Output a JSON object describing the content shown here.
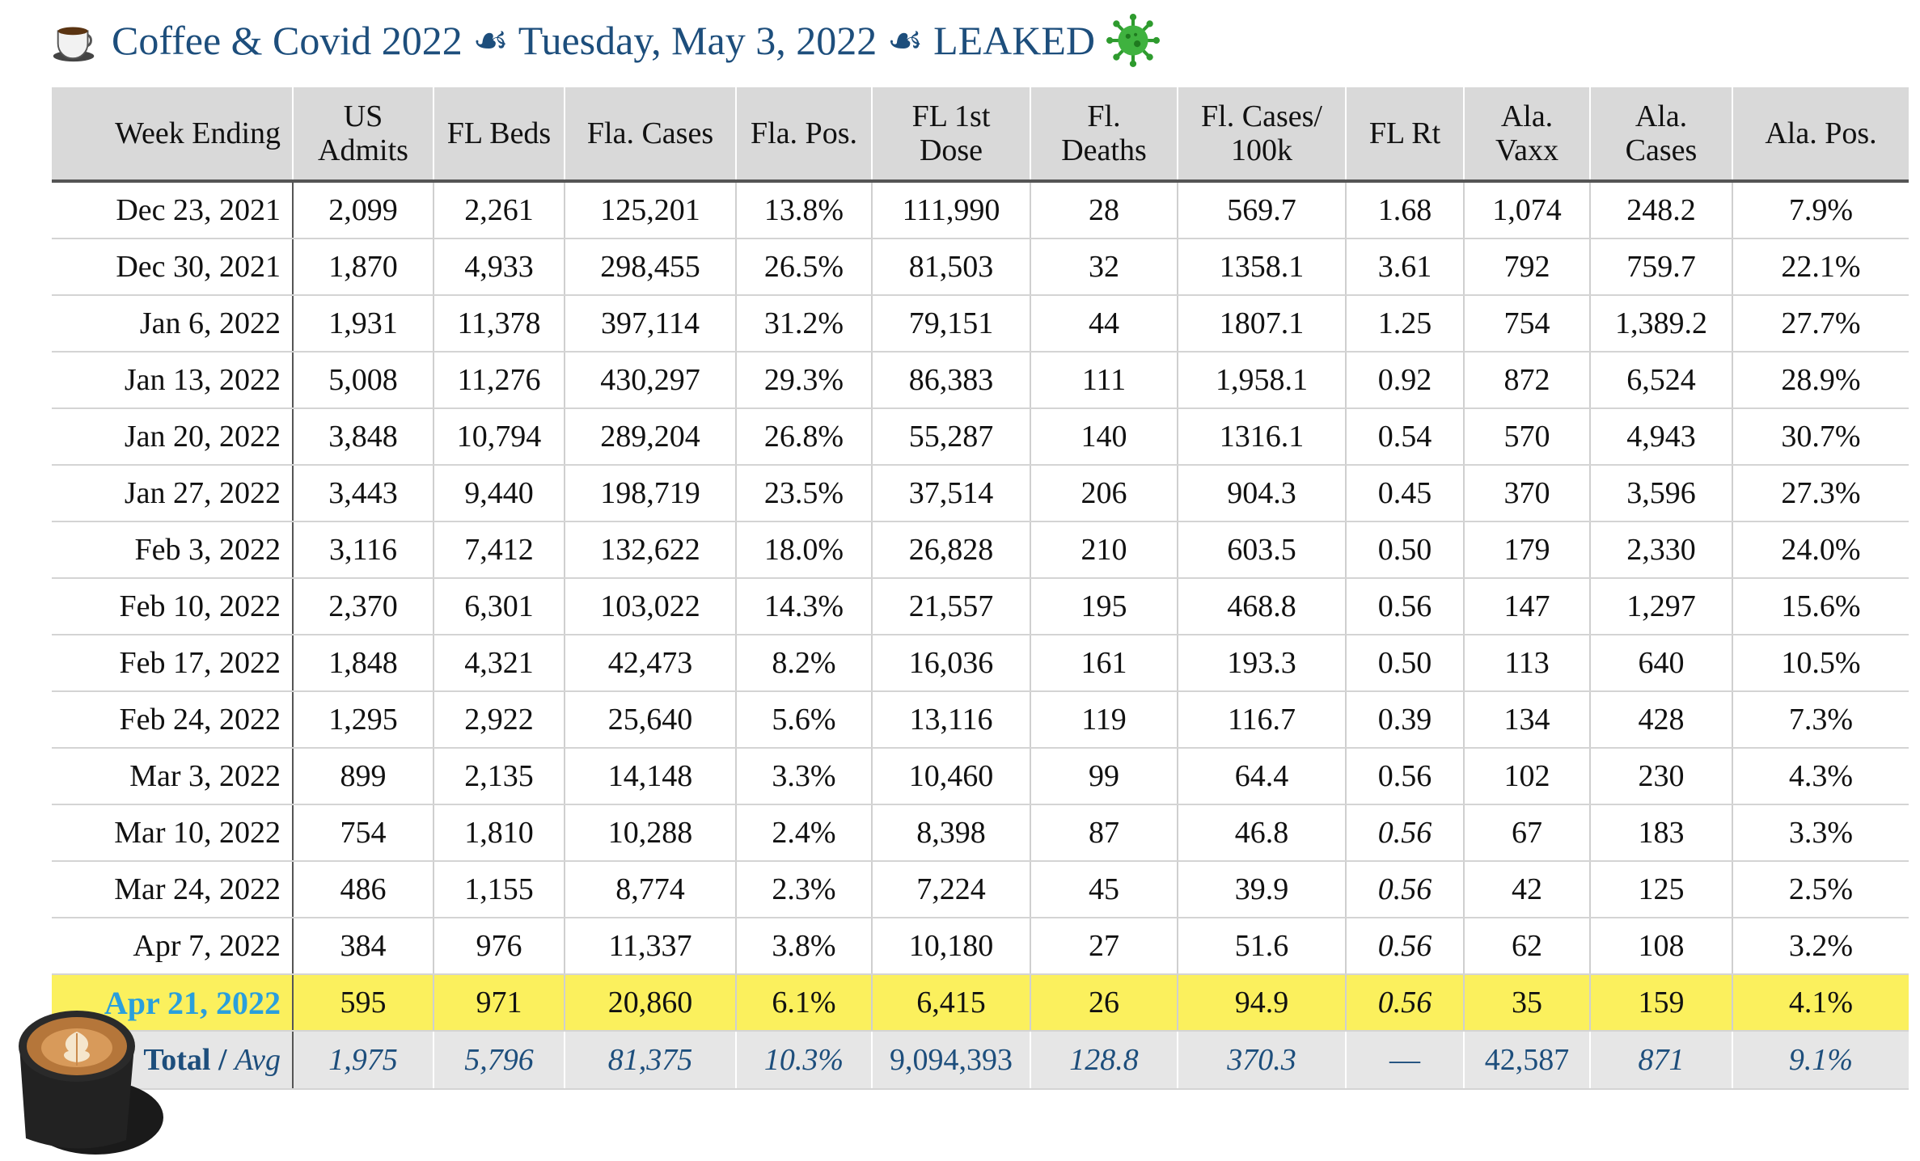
{
  "title": {
    "app_name": "Coffee & Covid 2022",
    "separator": "☙",
    "date": "Tuesday, May 3, 2022",
    "tag": "LEAKED",
    "icons": [
      "coffee-cup-icon",
      "virus-icon"
    ]
  },
  "table": {
    "headers": [
      {
        "line1": "Week Ending",
        "line2": ""
      },
      {
        "line1": "US",
        "line2": "Admits"
      },
      {
        "line1": "FL Beds",
        "line2": ""
      },
      {
        "line1": "Fla. Cases",
        "line2": ""
      },
      {
        "line1": "Fla. Pos.",
        "line2": ""
      },
      {
        "line1": "FL 1st",
        "line2": "Dose"
      },
      {
        "line1": "Fl.",
        "line2": "Deaths"
      },
      {
        "line1": "Fl. Cases/",
        "line2": "100k"
      },
      {
        "line1": "FL Rt",
        "line2": ""
      },
      {
        "line1": "Ala.",
        "line2": "Vaxx"
      },
      {
        "line1": "Ala.",
        "line2": "Cases"
      },
      {
        "line1": "Ala. Pos.",
        "line2": ""
      }
    ],
    "rows": [
      [
        "Dec 23, 2021",
        "2,099",
        "2,261",
        "125,201",
        "13.8%",
        "111,990",
        "28",
        "569.7",
        "1.68",
        "1,074",
        "248.2",
        "7.9%"
      ],
      [
        "Dec 30, 2021",
        "1,870",
        "4,933",
        "298,455",
        "26.5%",
        "81,503",
        "32",
        "1358.1",
        "3.61",
        "792",
        "759.7",
        "22.1%"
      ],
      [
        "Jan 6, 2022",
        "1,931",
        "11,378",
        "397,114",
        "31.2%",
        "79,151",
        "44",
        "1807.1",
        "1.25",
        "754",
        "1,389.2",
        "27.7%"
      ],
      [
        "Jan 13, 2022",
        "5,008",
        "11,276",
        "430,297",
        "29.3%",
        "86,383",
        "111",
        "1,958.1",
        "0.92",
        "872",
        "6,524",
        "28.9%"
      ],
      [
        "Jan 20, 2022",
        "3,848",
        "10,794",
        "289,204",
        "26.8%",
        "55,287",
        "140",
        "1316.1",
        "0.54",
        "570",
        "4,943",
        "30.7%"
      ],
      [
        "Jan 27, 2022",
        "3,443",
        "9,440",
        "198,719",
        "23.5%",
        "37,514",
        "206",
        "904.3",
        "0.45",
        "370",
        "3,596",
        "27.3%"
      ],
      [
        "Feb 3, 2022",
        "3,116",
        "7,412",
        "132,622",
        "18.0%",
        "26,828",
        "210",
        "603.5",
        "0.50",
        "179",
        "2,330",
        "24.0%"
      ],
      [
        "Feb 10, 2022",
        "2,370",
        "6,301",
        "103,022",
        "14.3%",
        "21,557",
        "195",
        "468.8",
        "0.56",
        "147",
        "1,297",
        "15.6%"
      ],
      [
        "Feb 17, 2022",
        "1,848",
        "4,321",
        "42,473",
        "8.2%",
        "16,036",
        "161",
        "193.3",
        "0.50",
        "113",
        "640",
        "10.5%"
      ],
      [
        "Feb 24, 2022",
        "1,295",
        "2,922",
        "25,640",
        "5.6%",
        "13,116",
        "119",
        "116.7",
        "0.39",
        "134",
        "428",
        "7.3%"
      ],
      [
        "Mar 3, 2022",
        "899",
        "2,135",
        "14,148",
        "3.3%",
        "10,460",
        "99",
        "64.4",
        "0.56",
        "102",
        "230",
        "4.3%"
      ],
      [
        "Mar 10, 2022",
        "754",
        "1,810",
        "10,288",
        "2.4%",
        "8,398",
        "87",
        "46.8",
        "0.56",
        "67",
        "183",
        "3.3%"
      ],
      [
        "Mar 24, 2022",
        "486",
        "1,155",
        "8,774",
        "2.3%",
        "7,224",
        "45",
        "39.9",
        "0.56",
        "42",
        "125",
        "2.5%"
      ],
      [
        "Apr 7, 2022",
        "384",
        "976",
        "11,337",
        "3.8%",
        "10,180",
        "27",
        "51.6",
        "0.56",
        "62",
        "108",
        "3.2%"
      ],
      [
        "Apr 21, 2022",
        "595",
        "971",
        "20,860",
        "6.1%",
        "6,415",
        "26",
        "94.9",
        "0.56",
        "35",
        "159",
        "4.1%"
      ]
    ],
    "italic_cells": [
      [
        11,
        8
      ],
      [
        12,
        8
      ],
      [
        13,
        8
      ],
      [
        14,
        8
      ]
    ],
    "highlight_row": 14,
    "footer": {
      "label_total": "Total",
      "label_sep": " / ",
      "label_avg": "Avg",
      "values": [
        "1,975",
        "5,796",
        "81,375",
        "10.3%",
        "9,094,393",
        "128.8",
        "370.3",
        "—",
        "42,587",
        "871",
        "9.1%"
      ],
      "upright_cols": [
        4,
        7,
        8
      ]
    }
  },
  "colors": {
    "title": "#1d4e7c",
    "header_bg": "#d9d9d9",
    "highlight_bg": "#fbf05d",
    "highlight_text": "#2a9fdc",
    "footer_bg": "#e6e6e6",
    "footer_text": "#1d4e7c"
  },
  "decorations": {
    "bottom_left_image": "latte-cup-icon"
  }
}
